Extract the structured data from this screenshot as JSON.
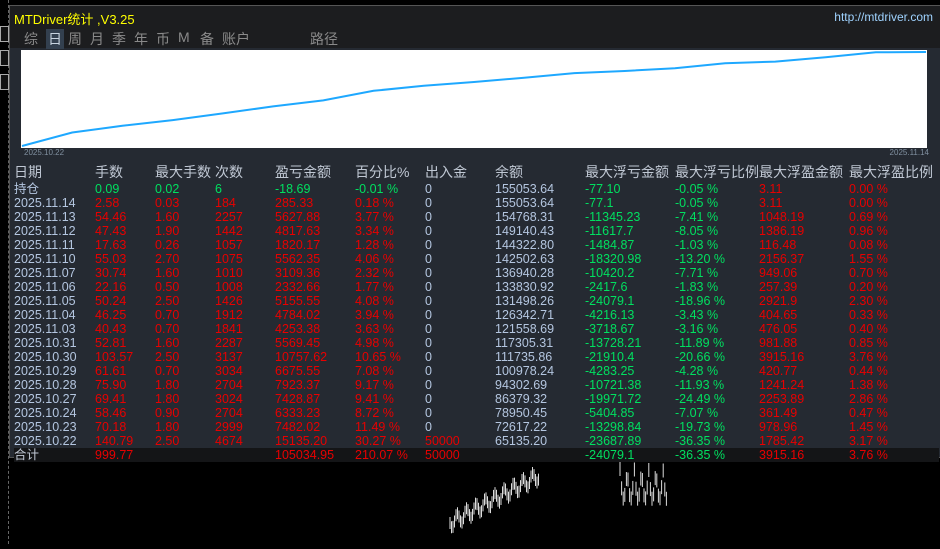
{
  "window": {
    "title": "MTDriver统计 ,V3.25",
    "url": "http://mtdriver.com"
  },
  "tabs": [
    {
      "label": "综",
      "active": false
    },
    {
      "label": "日",
      "active": true
    },
    {
      "label": "周",
      "active": false
    },
    {
      "label": "月",
      "active": false
    },
    {
      "label": "季",
      "active": false
    },
    {
      "label": "年",
      "active": false
    },
    {
      "label": "币",
      "active": false
    },
    {
      "label": "M",
      "active": false
    },
    {
      "label": "备",
      "active": false
    },
    {
      "label": "账户",
      "active": false
    },
    {
      "label": "路径",
      "active": false
    }
  ],
  "chart": {
    "start_label": "2025.10.22",
    "end_label": "2025.11.14",
    "line_color": "#1ea8ff"
  },
  "colors": {
    "profit": "#e80000",
    "loss": "#00e060",
    "text": "#b4c6e0",
    "background": "#252a32",
    "title": "#ffff00"
  },
  "table": {
    "headers": [
      "日期",
      "手数",
      "最大手数",
      "次数",
      "盈亏金额",
      "百分比%",
      "出入金",
      "余额",
      "最大浮亏金额",
      "最大浮亏比例",
      "最大浮盈金额",
      "最大浮盈比例"
    ],
    "position": [
      "持仓",
      "0.09",
      "0.02",
      "6",
      "-18.69",
      "-0.01 %",
      "0",
      "155053.64",
      "-77.10",
      "-0.05 %",
      "3.11",
      "0.00 %"
    ],
    "rows": [
      [
        "2025.11.14",
        "2.58",
        "0.03",
        "184",
        "285.33",
        "0.18 %",
        "0",
        "155053.64",
        "-77.1",
        "-0.05 %",
        "3.11",
        "0.00 %"
      ],
      [
        "2025.11.13",
        "54.46",
        "1.60",
        "2257",
        "5627.88",
        "3.77 %",
        "0",
        "154768.31",
        "-11345.23",
        "-7.41 %",
        "1048.19",
        "0.69 %"
      ],
      [
        "2025.11.12",
        "47.43",
        "1.90",
        "1442",
        "4817.63",
        "3.34 %",
        "0",
        "149140.43",
        "-11617.7",
        "-8.05 %",
        "1386.19",
        "0.96 %"
      ],
      [
        "2025.11.11",
        "17.63",
        "0.26",
        "1057",
        "1820.17",
        "1.28 %",
        "0",
        "144322.80",
        "-1484.87",
        "-1.03 %",
        "116.48",
        "0.08 %"
      ],
      [
        "2025.11.10",
        "55.03",
        "2.70",
        "1075",
        "5562.35",
        "4.06 %",
        "0",
        "142502.63",
        "-18320.98",
        "-13.20 %",
        "2156.37",
        "1.55 %"
      ],
      [
        "2025.11.07",
        "30.74",
        "1.60",
        "1010",
        "3109.36",
        "2.32 %",
        "0",
        "136940.28",
        "-10420.2",
        "-7.71 %",
        "949.06",
        "0.70 %"
      ],
      [
        "2025.11.06",
        "22.16",
        "0.50",
        "1008",
        "2332.66",
        "1.77 %",
        "0",
        "133830.92",
        "-2417.6",
        "-1.83 %",
        "257.39",
        "0.20 %"
      ],
      [
        "2025.11.05",
        "50.24",
        "2.50",
        "1426",
        "5155.55",
        "4.08 %",
        "0",
        "131498.26",
        "-24079.1",
        "-18.96 %",
        "2921.9",
        "2.30 %"
      ],
      [
        "2025.11.04",
        "46.25",
        "0.70",
        "1912",
        "4784.02",
        "3.94 %",
        "0",
        "126342.71",
        "-4216.13",
        "-3.43 %",
        "404.65",
        "0.33 %"
      ],
      [
        "2025.11.03",
        "40.43",
        "0.70",
        "1841",
        "4253.38",
        "3.63 %",
        "0",
        "121558.69",
        "-3718.67",
        "-3.16 %",
        "476.05",
        "0.40 %"
      ],
      [
        "2025.10.31",
        "52.81",
        "1.60",
        "2287",
        "5569.45",
        "4.98 %",
        "0",
        "117305.31",
        "-13728.21",
        "-11.89 %",
        "981.88",
        "0.85 %"
      ],
      [
        "2025.10.30",
        "103.57",
        "2.50",
        "3137",
        "10757.62",
        "10.65 %",
        "0",
        "111735.86",
        "-21910.4",
        "-20.66 %",
        "3915.16",
        "3.76 %"
      ],
      [
        "2025.10.29",
        "61.61",
        "0.70",
        "3034",
        "6675.55",
        "7.08 %",
        "0",
        "100978.24",
        "-4283.25",
        "-4.28 %",
        "420.77",
        "0.44 %"
      ],
      [
        "2025.10.28",
        "75.90",
        "1.80",
        "2704",
        "7923.37",
        "9.17 %",
        "0",
        "94302.69",
        "-10721.38",
        "-11.93 %",
        "1241.24",
        "1.38 %"
      ],
      [
        "2025.10.27",
        "69.41",
        "1.80",
        "3024",
        "7428.87",
        "9.41 %",
        "0",
        "86379.32",
        "-19971.72",
        "-24.49 %",
        "2253.89",
        "2.86 %"
      ],
      [
        "2025.10.24",
        "58.46",
        "0.90",
        "2704",
        "6333.23",
        "8.72 %",
        "0",
        "78950.45",
        "-5404.85",
        "-7.07 %",
        "361.49",
        "0.47 %"
      ],
      [
        "2025.10.23",
        "70.18",
        "1.80",
        "2999",
        "7482.02",
        "11.49 %",
        "0",
        "72617.22",
        "-13298.84",
        "-19.73 %",
        "978.96",
        "1.45 %"
      ],
      [
        "2025.10.22",
        "140.79",
        "2.50",
        "4674",
        "15135.20",
        "30.27 %",
        "50000",
        "65135.20",
        "-23687.89",
        "-36.35 %",
        "1785.42",
        "3.17 %"
      ]
    ],
    "total": [
      "合计",
      "999.77",
      "",
      "",
      "105034.95",
      "210.07 %",
      "50000",
      "",
      "-24079.1",
      "-36.35 %",
      "3915.16",
      "3.76 %"
    ]
  }
}
